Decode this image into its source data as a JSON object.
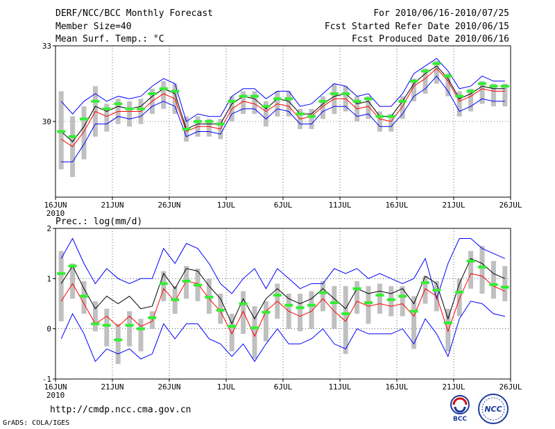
{
  "header": {
    "title": "DERF/NCC/BCC Monthly Forecast",
    "member": "Member Size=40",
    "variable": "Mean Surf. Temp.: °C",
    "period": "For 2010/06/16-2010/07/25",
    "fcst_started": "Fcst Started Refer Date 2010/06/15",
    "fcst_produced": "Fcst Produced Date 2010/06/16"
  },
  "footer": {
    "url": "http://cmdp.ncc.cma.gov.cn",
    "grads": "GrADS: COLA/IGES",
    "logo_bcc": "BCC",
    "logo_ncc": "NCC"
  },
  "colors": {
    "ensemble_mean": "#000000",
    "median": "#ff0000",
    "spread_bounds": "#0000ff",
    "boxes": "#c0c0c0",
    "markers": "#33ee33"
  },
  "chart_data": [
    {
      "type": "line",
      "title": "Mean Surf. Temp.: °C",
      "ylim": [
        27,
        33
      ],
      "yticks": [
        30,
        33
      ],
      "ytick_labels": [
        "30",
        "33"
      ],
      "xlim": [
        0,
        40
      ],
      "xtick_positions": [
        1,
        6,
        11,
        16,
        21,
        26,
        31,
        36,
        41
      ],
      "xtick_labels": [
        "16JUN",
        "21JUN",
        "26JUN",
        "1JUL",
        "6JUL",
        "11JUL",
        "16JUL",
        "21JUL",
        "26JUL"
      ],
      "year_label": "2010",
      "series": [
        {
          "name": "upper bound",
          "color": "#0000ff",
          "values": [
            30.8,
            30.3,
            30.8,
            31.1,
            30.8,
            31.0,
            30.9,
            31.0,
            31.4,
            31.7,
            31.5,
            30.0,
            30.3,
            30.2,
            30.2,
            31.0,
            31.3,
            31.3,
            30.9,
            31.2,
            31.2,
            30.6,
            30.7,
            31.1,
            31.5,
            31.4,
            31.0,
            31.1,
            30.6,
            30.6,
            31.1,
            31.9,
            32.2,
            32.5,
            32.0,
            31.3,
            31.4,
            31.8,
            31.6,
            31.6
          ]
        },
        {
          "name": "ensemble mean",
          "color": "#000000",
          "values": [
            29.6,
            29.2,
            29.8,
            30.6,
            30.4,
            30.6,
            30.5,
            30.6,
            31.0,
            31.3,
            31.1,
            29.7,
            29.9,
            29.9,
            29.9,
            30.7,
            31.0,
            30.9,
            30.5,
            30.9,
            30.8,
            30.3,
            30.3,
            30.7,
            31.0,
            31.1,
            30.7,
            30.8,
            30.2,
            30.2,
            30.8,
            31.5,
            31.9,
            32.2,
            31.7,
            30.9,
            31.1,
            31.4,
            31.3,
            31.3
          ]
        },
        {
          "name": "median",
          "color": "#ff0000",
          "values": [
            29.3,
            29.0,
            29.6,
            30.4,
            30.2,
            30.4,
            30.4,
            30.4,
            30.8,
            31.1,
            30.9,
            29.6,
            29.8,
            29.8,
            29.7,
            30.5,
            30.8,
            30.7,
            30.4,
            30.7,
            30.6,
            30.1,
            30.2,
            30.6,
            30.9,
            30.9,
            30.5,
            30.6,
            30.1,
            30.0,
            30.6,
            31.4,
            31.7,
            32.1,
            31.6,
            30.8,
            31.0,
            31.3,
            31.2,
            31.2
          ]
        },
        {
          "name": "lower bound",
          "color": "#0000ff",
          "values": [
            28.4,
            28.4,
            29.1,
            29.9,
            29.9,
            30.2,
            30.1,
            30.2,
            30.6,
            30.8,
            30.6,
            29.4,
            29.6,
            29.6,
            29.5,
            30.3,
            30.5,
            30.5,
            30.1,
            30.5,
            30.4,
            29.9,
            29.9,
            30.4,
            30.6,
            30.6,
            30.2,
            30.3,
            29.8,
            29.8,
            30.3,
            31.0,
            31.3,
            31.8,
            31.2,
            30.4,
            30.6,
            30.9,
            30.8,
            30.8
          ]
        }
      ],
      "box_low": [
        28.1,
        27.8,
        28.5,
        29.4,
        29.6,
        29.9,
        29.8,
        29.9,
        30.3,
        30.5,
        30.3,
        29.2,
        29.4,
        29.4,
        29.3,
        30.0,
        30.3,
        30.3,
        29.8,
        30.2,
        30.2,
        29.7,
        29.7,
        30.1,
        30.3,
        30.4,
        30.0,
        30.1,
        29.6,
        29.6,
        30.1,
        30.8,
        31.1,
        31.5,
        31.0,
        30.2,
        30.4,
        30.7,
        30.6,
        30.6
      ],
      "box_high": [
        31.2,
        30.2,
        30.6,
        31.4,
        30.7,
        30.9,
        30.8,
        30.9,
        31.3,
        31.6,
        31.5,
        30.2,
        30.2,
        30.1,
        30.1,
        31.0,
        31.2,
        31.2,
        30.8,
        31.2,
        31.2,
        30.5,
        30.5,
        31.0,
        31.5,
        31.4,
        31.0,
        31.0,
        30.4,
        30.3,
        31.0,
        31.7,
        32.1,
        32.4,
        31.9,
        31.2,
        31.3,
        31.6,
        31.5,
        31.5
      ],
      "markers": [
        29.6,
        29.4,
        30.1,
        30.8,
        30.5,
        30.7,
        30.5,
        30.5,
        31.1,
        31.3,
        31.2,
        29.7,
        30.0,
        30.0,
        29.9,
        30.8,
        31.0,
        31.0,
        30.6,
        30.9,
        30.9,
        30.3,
        30.2,
        30.8,
        31.1,
        31.1,
        30.8,
        30.9,
        30.2,
        30.2,
        30.8,
        31.6,
        32.0,
        32.3,
        31.8,
        31.0,
        31.2,
        31.5,
        31.4,
        31.4
      ]
    },
    {
      "type": "line",
      "title": "Prec.: log(mm/d)",
      "ylim": [
        -1,
        2
      ],
      "yticks": [
        -1,
        0,
        1,
        2
      ],
      "ytick_labels": [
        "-1",
        "0",
        "1",
        "2"
      ],
      "xlim": [
        0,
        40
      ],
      "xtick_positions": [
        1,
        6,
        11,
        16,
        21,
        26,
        31,
        36,
        41
      ],
      "xtick_labels": [
        "16JUN",
        "21JUN",
        "26JUN",
        "1JUL",
        "6JUL",
        "11JUL",
        "16JUL",
        "21JUL",
        "26JUL"
      ],
      "year_label": "2010",
      "series": [
        {
          "name": "upper bound",
          "color": "#0000ff",
          "values": [
            1.4,
            1.8,
            1.3,
            0.9,
            1.2,
            1.0,
            0.9,
            1.0,
            1.0,
            1.6,
            1.3,
            1.7,
            1.6,
            1.3,
            0.9,
            0.7,
            1.0,
            1.2,
            0.8,
            1.2,
            1.0,
            0.8,
            0.9,
            0.9,
            1.2,
            1.1,
            1.2,
            1.0,
            1.1,
            1.0,
            0.9,
            1.0,
            1.4,
            0.6,
            1.3,
            1.8,
            1.8,
            1.6,
            1.5,
            1.4
          ]
        },
        {
          "name": "ensemble mean",
          "color": "#000000",
          "values": [
            0.9,
            1.25,
            0.8,
            0.4,
            0.65,
            0.5,
            0.65,
            0.4,
            0.45,
            1.1,
            0.8,
            1.2,
            1.15,
            0.85,
            0.6,
            0.1,
            0.6,
            0.2,
            0.6,
            0.8,
            0.6,
            0.5,
            0.6,
            0.8,
            0.6,
            0.4,
            0.8,
            0.7,
            0.75,
            0.7,
            0.8,
            0.5,
            1.05,
            0.9,
            0.2,
            0.9,
            1.4,
            1.3,
            1.1,
            1.0
          ]
        },
        {
          "name": "median",
          "color": "#ff0000",
          "values": [
            0.55,
            0.9,
            0.5,
            0.1,
            0.25,
            0.05,
            0.25,
            0.05,
            0.15,
            0.8,
            0.55,
            0.95,
            0.9,
            0.6,
            0.35,
            -0.1,
            0.35,
            -0.15,
            0.35,
            0.55,
            0.35,
            0.25,
            0.35,
            0.6,
            0.35,
            0.15,
            0.55,
            0.45,
            0.5,
            0.45,
            0.5,
            0.25,
            0.8,
            0.65,
            -0.05,
            0.6,
            1.1,
            1.05,
            0.85,
            0.75
          ]
        },
        {
          "name": "lower bound",
          "color": "#0000ff",
          "values": [
            -0.2,
            0.3,
            -0.1,
            -0.65,
            -0.4,
            -0.5,
            -0.4,
            -0.6,
            -0.5,
            0.1,
            -0.2,
            0.1,
            0.1,
            -0.2,
            -0.3,
            -0.55,
            -0.3,
            -0.65,
            -0.3,
            0.0,
            -0.3,
            -0.3,
            -0.2,
            0.0,
            -0.3,
            -0.4,
            0.0,
            -0.1,
            -0.1,
            -0.1,
            0.0,
            -0.3,
            0.2,
            -0.1,
            -0.55,
            0.2,
            0.55,
            0.5,
            0.3,
            0.25
          ]
        }
      ],
      "box_low": [
        0.15,
        0.6,
        0.3,
        -0.05,
        -0.35,
        -0.7,
        -0.35,
        -0.45,
        0.0,
        0.55,
        0.3,
        0.6,
        0.55,
        0.3,
        0.1,
        -0.45,
        -0.1,
        -0.6,
        -0.25,
        0.2,
        0.0,
        -0.05,
        0.0,
        0.35,
        0.0,
        -0.5,
        0.3,
        0.1,
        0.3,
        0.25,
        0.25,
        -0.4,
        0.5,
        0.35,
        -0.45,
        0.25,
        0.8,
        0.7,
        0.6,
        0.55
      ],
      "box_high": [
        1.55,
        1.3,
        0.95,
        0.55,
        0.4,
        0.1,
        0.35,
        0.2,
        0.35,
        1.15,
        0.85,
        1.25,
        1.2,
        1.0,
        0.7,
        0.3,
        0.75,
        0.45,
        0.55,
        0.9,
        0.7,
        0.7,
        0.75,
        0.95,
        0.85,
        0.85,
        0.95,
        0.85,
        0.9,
        0.85,
        0.85,
        0.65,
        1.05,
        0.95,
        0.4,
        1.0,
        1.55,
        1.65,
        1.35,
        1.25
      ],
      "markers": [
        1.1,
        1.25,
        0.65,
        0.1,
        0.07,
        -0.22,
        0.07,
        0.0,
        0.22,
        0.9,
        0.58,
        0.95,
        0.87,
        0.63,
        0.37,
        0.05,
        0.5,
        0.02,
        0.33,
        0.67,
        0.47,
        0.42,
        0.47,
        0.72,
        0.52,
        0.3,
        0.8,
        0.52,
        0.67,
        0.58,
        0.65,
        0.35,
        0.92,
        0.77,
        0.12,
        0.73,
        1.35,
        1.23,
        0.88,
        0.83
      ]
    }
  ]
}
